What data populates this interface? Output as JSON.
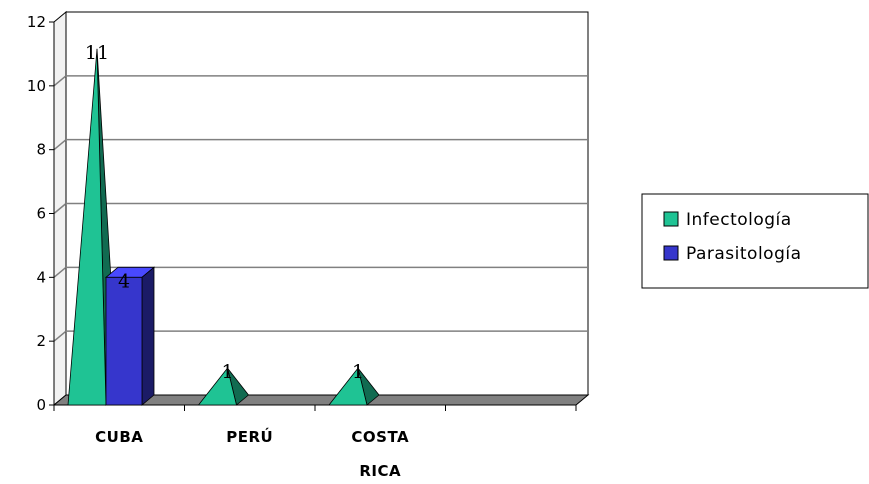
{
  "chart_data": {
    "type": "bar",
    "categories": [
      {
        "lines": [
          "CUBA"
        ]
      },
      {
        "lines": [
          "PERÚ"
        ]
      },
      {
        "lines": [
          "COSTA",
          "RICA"
        ]
      },
      {
        "lines": []
      }
    ],
    "series": [
      {
        "name": "Infectología",
        "values": [
          11,
          1,
          1,
          null
        ],
        "color": "#1fc394",
        "shape": "pyramid"
      },
      {
        "name": "Parasitología",
        "values": [
          4,
          null,
          null,
          null
        ],
        "color": "#3636cc",
        "shape": "box"
      }
    ],
    "data_labels": [
      "11",
      "4",
      "1",
      "1"
    ],
    "y_ticks": [
      "0",
      "2",
      "4",
      "6",
      "8",
      "10",
      "12"
    ],
    "ylim": [
      0,
      12
    ],
    "grid": true,
    "legend_position": "right",
    "colors": {
      "wall": "#ffffff",
      "gridline": "#808080",
      "floor": "#808080",
      "floor_edge": "#000000"
    }
  }
}
